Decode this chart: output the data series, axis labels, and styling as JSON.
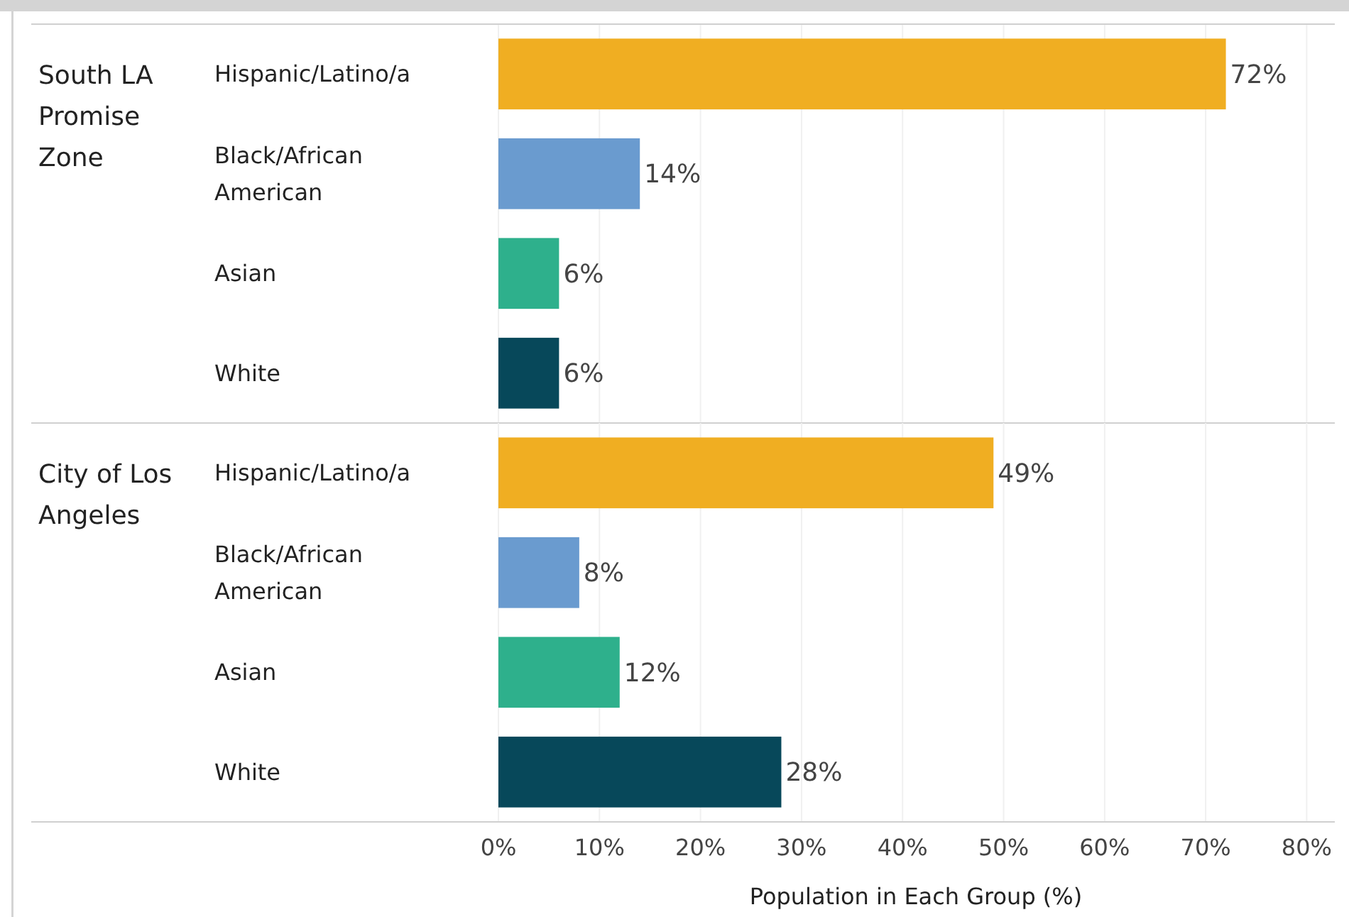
{
  "chart_data": [
    {
      "type": "bar",
      "orientation": "horizontal",
      "title": "South LA Promise Zone",
      "categories": [
        "Hispanic/Latino/a",
        "Black/African American",
        "Asian",
        "White"
      ],
      "values": [
        72,
        14,
        6,
        6
      ],
      "colors": [
        "#f0ae22",
        "#6a9bcf",
        "#2eb08c",
        "#07485a"
      ],
      "value_labels": [
        "72%",
        "14%",
        "6%",
        "6%"
      ],
      "xlim": [
        0,
        82.5
      ],
      "xticks": [
        0,
        10,
        20,
        30,
        40,
        50,
        60,
        70,
        80
      ],
      "grid": "x",
      "tick_labels": "y"
    },
    {
      "type": "bar",
      "orientation": "horizontal",
      "title": "City of Los Angeles",
      "xlabel": "Population in Each Group (%)",
      "categories": [
        "Hispanic/Latino/a",
        "Black/African American",
        "Asian",
        "White"
      ],
      "values": [
        49,
        8,
        12,
        28
      ],
      "colors": [
        "#f0ae22",
        "#6a9bcf",
        "#2eb08c",
        "#07485a"
      ],
      "value_labels": [
        "49%",
        "8%",
        "12%",
        "28%"
      ],
      "xlim": [
        0,
        82.5
      ],
      "xticks": [
        {
          "value": 0,
          "label": "0%"
        },
        {
          "value": 10,
          "label": "10%"
        },
        {
          "value": 20,
          "label": "20%"
        },
        {
          "value": 30,
          "label": "30%"
        },
        {
          "value": 40,
          "label": "40%"
        },
        {
          "value": 50,
          "label": "50%"
        },
        {
          "value": 60,
          "label": "60%"
        },
        {
          "value": 70,
          "label": "70%"
        },
        {
          "value": 80,
          "label": "80%"
        }
      ],
      "grid": "x"
    }
  ]
}
